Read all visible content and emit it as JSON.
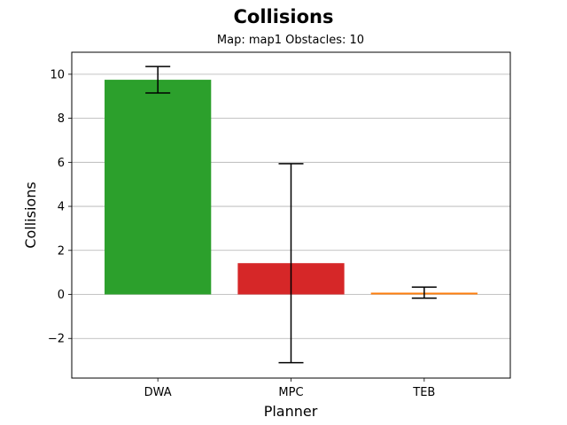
{
  "chart_data": {
    "type": "bar",
    "title": "Collisions",
    "subtitle": "Map: map1 Obstacles: 10",
    "xlabel": "Planner",
    "ylabel": "Collisions",
    "categories": [
      "DWA",
      "MPC",
      "TEB"
    ],
    "values": [
      9.75,
      1.42,
      0.08
    ],
    "error": [
      0.6,
      4.52,
      0.25
    ],
    "colors": [
      "#2ca02c",
      "#d62728",
      "#ff7f0e"
    ],
    "ylim": [
      -3.8,
      11.0
    ],
    "yticks": [
      -2,
      0,
      2,
      4,
      6,
      8,
      10
    ],
    "ytick_labels": [
      "−2",
      "0",
      "2",
      "4",
      "6",
      "8",
      "10"
    ],
    "grid": "y"
  }
}
